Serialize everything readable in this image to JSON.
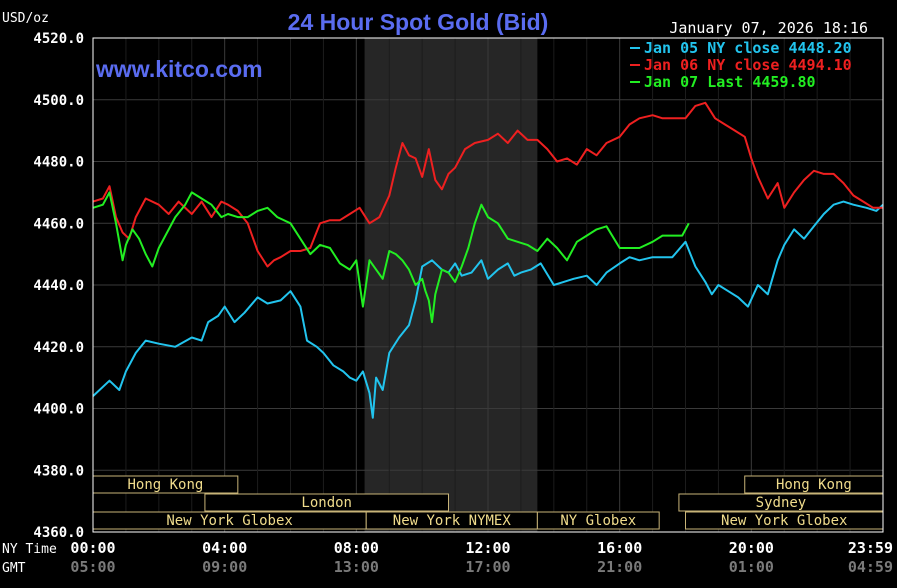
{
  "chart_data": {
    "type": "line",
    "title": "24 Hour Spot Gold (Bid)",
    "ylabel": "USD/oz",
    "timestamp": "January 07, 2026 18:16",
    "watermark": "www.kitco.com",
    "ylim": [
      4360,
      4520
    ],
    "y_ticks": [
      "4520.0",
      "4500.0",
      "4480.0",
      "4460.0",
      "4440.0",
      "4420.0",
      "4400.0",
      "4380.0",
      "4360.0"
    ],
    "xlim": [
      0,
      24
    ],
    "x_axis_rows": [
      {
        "label": "NY Time",
        "ticks": [
          "00:00",
          "04:00",
          "08:00",
          "12:00",
          "16:00",
          "20:00",
          "23:59"
        ]
      },
      {
        "label": "GMT",
        "ticks": [
          "05:00",
          "09:00",
          "13:00",
          "17:00",
          "21:00",
          "01:00",
          "04:59"
        ]
      }
    ],
    "grid": true,
    "legend_position": "top-right",
    "shaded_session": {
      "start": 8.25,
      "end": 13.5
    },
    "series": [
      {
        "name": "Jan 05 NY close 4448.20",
        "color": "#22c4ee",
        "x": [
          0,
          0.5,
          0.8,
          1.0,
          1.3,
          1.6,
          2.0,
          2.5,
          3.0,
          3.3,
          3.5,
          3.8,
          4.0,
          4.3,
          4.6,
          5.0,
          5.3,
          5.7,
          6.0,
          6.3,
          6.5,
          6.8,
          7.0,
          7.3,
          7.6,
          7.8,
          8.0,
          8.2,
          8.4,
          8.5,
          8.6,
          8.8,
          9.0,
          9.3,
          9.6,
          9.8,
          10.0,
          10.3,
          10.6,
          10.8,
          11.0,
          11.2,
          11.5,
          11.8,
          12.0,
          12.3,
          12.6,
          12.8,
          13.0,
          13.3,
          13.6,
          14.0,
          14.3,
          14.6,
          15.0,
          15.3,
          15.6,
          16.0,
          16.3,
          16.6,
          17.0,
          17.3,
          17.6,
          18.0,
          18.3,
          18.6,
          18.8,
          19.0,
          19.3,
          19.6,
          19.9,
          20.2,
          20.5,
          20.8,
          21.0,
          21.3,
          21.6,
          21.9,
          22.2,
          22.5,
          22.8,
          23.1,
          23.5,
          23.8,
          24.0
        ],
        "values": [
          4404,
          4409,
          4406,
          4412,
          4418,
          4422,
          4421,
          4420,
          4423,
          4422,
          4428,
          4430,
          4433,
          4428,
          4431,
          4436,
          4434,
          4435,
          4438,
          4433,
          4422,
          4420,
          4418,
          4414,
          4412,
          4410,
          4409,
          4412,
          4405,
          4397,
          4410,
          4406,
          4418,
          4423,
          4427,
          4435,
          4446,
          4448,
          4445,
          4444,
          4447,
          4443,
          4444,
          4448,
          4442,
          4445,
          4447,
          4443,
          4444,
          4445,
          4447,
          4440,
          4441,
          4442,
          4443,
          4440,
          4444,
          4447,
          4449,
          4448,
          4449,
          4449,
          4449,
          4454,
          4446,
          4441,
          4437,
          4440,
          4438,
          4436,
          4433,
          4440,
          4437,
          4448,
          4453,
          4458,
          4455,
          4459,
          4463,
          4466,
          4467,
          4466,
          4465,
          4464,
          4466
        ]
      },
      {
        "name": "Jan 06 NY close 4494.10",
        "color": "#ee2020",
        "x": [
          0,
          0.3,
          0.5,
          0.7,
          0.9,
          1.1,
          1.3,
          1.6,
          2.0,
          2.3,
          2.6,
          3.0,
          3.3,
          3.6,
          3.9,
          4.1,
          4.4,
          4.7,
          5.0,
          5.3,
          5.5,
          5.7,
          6.0,
          6.3,
          6.6,
          6.9,
          7.2,
          7.5,
          7.8,
          8.1,
          8.4,
          8.7,
          9.0,
          9.2,
          9.4,
          9.6,
          9.8,
          10.0,
          10.2,
          10.4,
          10.6,
          10.8,
          11.0,
          11.3,
          11.6,
          12.0,
          12.3,
          12.6,
          12.9,
          13.2,
          13.5,
          13.8,
          14.1,
          14.4,
          14.7,
          15.0,
          15.3,
          15.6,
          16.0,
          16.3,
          16.6,
          17.0,
          17.3,
          17.6,
          18.0,
          18.3,
          18.6,
          18.9,
          19.2,
          19.5,
          19.8,
          20.0,
          20.2,
          20.5,
          20.8,
          21.0,
          21.3,
          21.6,
          21.9,
          22.2,
          22.5,
          22.8,
          23.1,
          23.4,
          23.7,
          24.0
        ],
        "values": [
          4467,
          4468,
          4472,
          4462,
          4457,
          4455,
          4462,
          4468,
          4466,
          4463,
          4467,
          4463,
          4467,
          4462,
          4467,
          4466,
          4464,
          4460,
          4451,
          4446,
          4448,
          4449,
          4451,
          4451,
          4452,
          4460,
          4461,
          4461,
          4463,
          4465,
          4460,
          4462,
          4469,
          4478,
          4486,
          4482,
          4481,
          4475,
          4484,
          4474,
          4471,
          4476,
          4478,
          4484,
          4486,
          4487,
          4489,
          4486,
          4490,
          4487,
          4487,
          4484,
          4480,
          4481,
          4479,
          4484,
          4482,
          4486,
          4488,
          4492,
          4494,
          4495,
          4494,
          4494,
          4494,
          4498,
          4499,
          4494,
          4492,
          4490,
          4488,
          4481,
          4475,
          4468,
          4473,
          4465,
          4470,
          4474,
          4477,
          4476,
          4476,
          4473,
          4469,
          4467,
          4465,
          4465
        ]
      },
      {
        "name": "Jan 07 Last 4459.80",
        "color": "#22ee22",
        "x": [
          0,
          0.3,
          0.5,
          0.7,
          0.9,
          1.0,
          1.2,
          1.4,
          1.6,
          1.8,
          2.0,
          2.2,
          2.5,
          2.8,
          3.0,
          3.3,
          3.6,
          3.9,
          4.1,
          4.4,
          4.7,
          5.0,
          5.3,
          5.6,
          6.0,
          6.3,
          6.6,
          6.9,
          7.2,
          7.5,
          7.8,
          8.0,
          8.2,
          8.4,
          8.6,
          8.8,
          9.0,
          9.2,
          9.4,
          9.6,
          9.8,
          10.0,
          10.1,
          10.2,
          10.3,
          10.4,
          10.6,
          10.8,
          11.0,
          11.2,
          11.4,
          11.6,
          11.8,
          12.0,
          12.3,
          12.6,
          12.9,
          13.2,
          13.5,
          13.8,
          14.1,
          14.4,
          14.7,
          15.0,
          15.3,
          15.6,
          16.0,
          16.3,
          16.6,
          17.0,
          17.3,
          17.6,
          17.9,
          18.1
        ],
        "values": [
          4465,
          4466,
          4470,
          4460,
          4448,
          4453,
          4458,
          4455,
          4450,
          4446,
          4452,
          4456,
          4462,
          4466,
          4470,
          4468,
          4466,
          4462,
          4463,
          4462,
          4462,
          4464,
          4465,
          4462,
          4460,
          4455,
          4450,
          4453,
          4452,
          4447,
          4445,
          4448,
          4433,
          4448,
          4445,
          4442,
          4451,
          4450,
          4448,
          4445,
          4440,
          4442,
          4438,
          4435,
          4428,
          4437,
          4445,
          4444,
          4441,
          4446,
          4452,
          4460,
          4466,
          4462,
          4460,
          4455,
          4454,
          4453,
          4451,
          4455,
          4452,
          4448,
          4454,
          4456,
          4458,
          4459,
          4452,
          4452,
          4452,
          4454,
          4456,
          4456,
          4456,
          4460
        ]
      }
    ],
    "sessions": [
      {
        "label": "Hong Kong",
        "row": 0,
        "start": 0.0,
        "end": 4.4
      },
      {
        "label": "London",
        "row": 1,
        "start": 3.4,
        "end": 10.8
      },
      {
        "label": "New York Globex",
        "row": 2,
        "start": 0.0,
        "end": 8.3
      },
      {
        "label": "New York NYMEX",
        "row": 2,
        "start": 8.3,
        "end": 13.5
      },
      {
        "label": "NY Globex",
        "row": 2,
        "start": 13.5,
        "end": 17.2
      },
      {
        "label": "Hong Kong",
        "row": 0,
        "start": 19.8,
        "end": 24.0
      },
      {
        "label": "Sydney",
        "row": 1,
        "start": 17.8,
        "end": 24.0
      },
      {
        "label": "New York Globex",
        "row": 2,
        "start": 18.0,
        "end": 24.0
      }
    ]
  }
}
